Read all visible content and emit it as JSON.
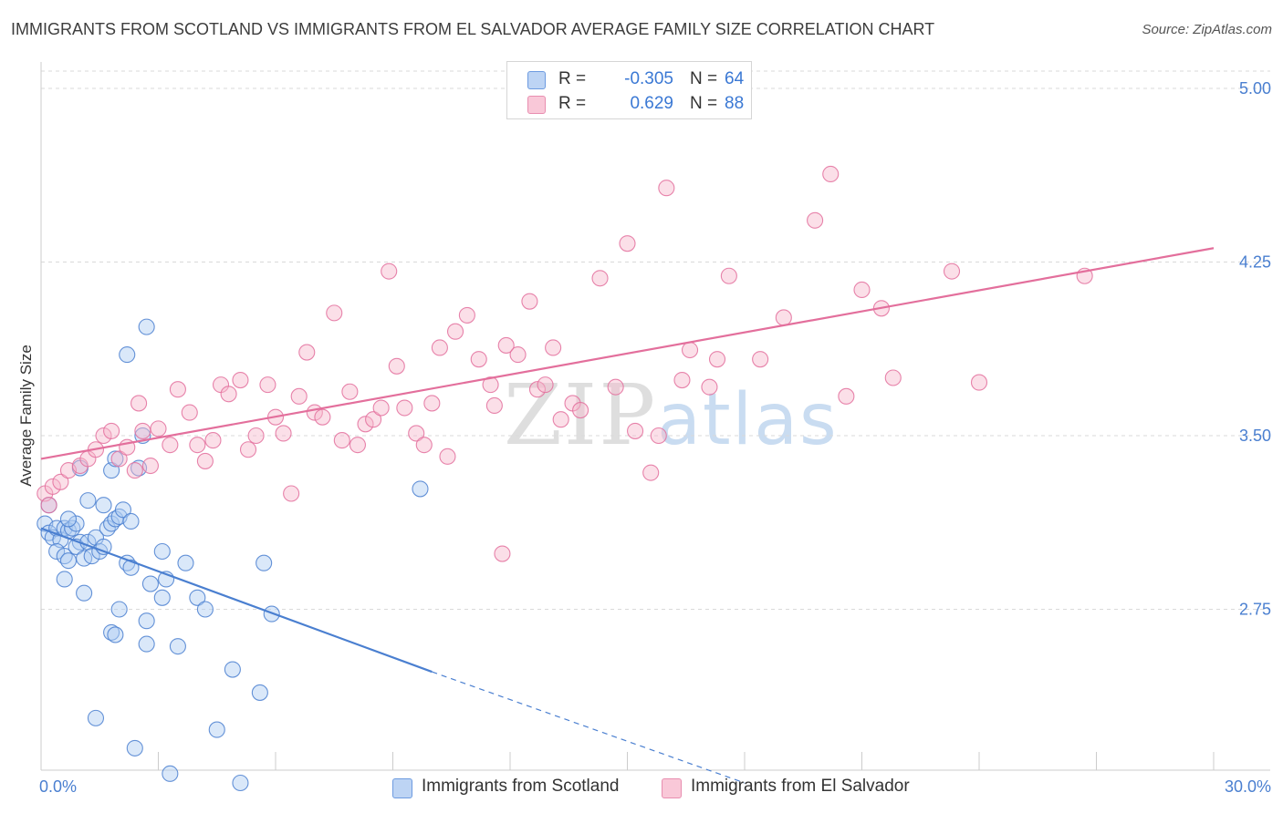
{
  "title": "IMMIGRANTS FROM SCOTLAND VS IMMIGRANTS FROM EL SALVADOR AVERAGE FAMILY SIZE CORRELATION CHART",
  "source": "Source: ZipAtlas.com",
  "watermark": {
    "zip": "ZIP",
    "atlas": "atlas"
  },
  "colors": {
    "blue": "#4a7fd0",
    "blue_fill": "#aecbf2",
    "pink": "#e36f9c",
    "pink_fill": "#f7b9cd",
    "grid": "#d9d9d9",
    "tick_text": "#4a7fd0"
  },
  "legend": [
    {
      "r_label": "R =",
      "r_value": "-0.305",
      "n_label": "N =",
      "n_value": "64"
    },
    {
      "r_label": "R =",
      "r_value": "0.629",
      "n_label": "N =",
      "n_value": "88"
    }
  ],
  "chart_data": {
    "type": "scatter",
    "title": "IMMIGRANTS FROM SCOTLAND VS IMMIGRANTS FROM EL SALVADOR AVERAGE FAMILY SIZE CORRELATION CHART",
    "xlabel": "",
    "ylabel": "Average Family Size",
    "xlim": [
      0,
      30
    ],
    "ylim": [
      2.0,
      5.15
    ],
    "x_tick_labels": [
      "0.0%",
      "30.0%"
    ],
    "y_ticks": [
      2.75,
      3.5,
      4.25,
      5.0
    ],
    "y_tick_labels": [
      "2.75",
      "3.50",
      "4.25",
      "5.00"
    ],
    "grid": true,
    "legend_position": "top-center",
    "series": [
      {
        "name": "Immigrants from Scotland",
        "color": "#4a7fd0",
        "trend": {
          "x": [
            0.0,
            10.0
          ],
          "y": [
            3.1,
            2.48
          ],
          "dashed_extension_to": [
            18.0,
            2.0
          ]
        },
        "points": [
          [
            0.1,
            3.12
          ],
          [
            0.2,
            3.08
          ],
          [
            0.3,
            3.06
          ],
          [
            0.4,
            3.1
          ],
          [
            0.5,
            3.05
          ],
          [
            0.6,
            3.1
          ],
          [
            0.7,
            3.09
          ],
          [
            0.8,
            3.1
          ],
          [
            0.9,
            3.12
          ],
          [
            1.0,
            3.04
          ],
          [
            0.4,
            3.0
          ],
          [
            0.6,
            2.98
          ],
          [
            0.7,
            2.96
          ],
          [
            0.9,
            3.02
          ],
          [
            1.1,
            2.97
          ],
          [
            1.2,
            3.04
          ],
          [
            1.3,
            2.98
          ],
          [
            1.4,
            3.06
          ],
          [
            1.5,
            3.0
          ],
          [
            1.6,
            3.02
          ],
          [
            1.7,
            3.1
          ],
          [
            1.8,
            3.12
          ],
          [
            1.9,
            3.14
          ],
          [
            2.0,
            3.15
          ],
          [
            2.1,
            3.18
          ],
          [
            2.3,
            3.13
          ],
          [
            1.2,
            3.22
          ],
          [
            1.6,
            3.2
          ],
          [
            0.7,
            3.14
          ],
          [
            2.2,
            2.95
          ],
          [
            2.3,
            2.93
          ],
          [
            1.8,
            3.35
          ],
          [
            2.5,
            3.36
          ],
          [
            1.9,
            3.4
          ],
          [
            1.0,
            3.36
          ],
          [
            2.6,
            3.5
          ],
          [
            2.7,
            3.97
          ],
          [
            2.2,
            3.85
          ],
          [
            3.1,
            3.0
          ],
          [
            3.7,
            2.95
          ],
          [
            2.8,
            2.86
          ],
          [
            3.2,
            2.88
          ],
          [
            3.1,
            2.8
          ],
          [
            4.0,
            2.8
          ],
          [
            4.2,
            2.75
          ],
          [
            1.1,
            2.82
          ],
          [
            0.6,
            2.88
          ],
          [
            2.0,
            2.75
          ],
          [
            2.7,
            2.7
          ],
          [
            1.8,
            2.65
          ],
          [
            1.9,
            2.64
          ],
          [
            2.7,
            2.6
          ],
          [
            3.5,
            2.59
          ],
          [
            4.9,
            2.49
          ],
          [
            5.6,
            2.39
          ],
          [
            1.4,
            2.28
          ],
          [
            2.4,
            2.15
          ],
          [
            4.5,
            2.23
          ],
          [
            3.3,
            2.04
          ],
          [
            5.1,
            2.0
          ],
          [
            5.7,
            2.95
          ],
          [
            5.9,
            2.73
          ],
          [
            9.7,
            3.27
          ],
          [
            0.2,
            3.2
          ]
        ]
      },
      {
        "name": "Immigrants from El Salvador",
        "color": "#e36f9c",
        "trend": {
          "x": [
            0.0,
            30.0
          ],
          "y": [
            3.4,
            4.31
          ]
        },
        "points": [
          [
            0.1,
            3.25
          ],
          [
            0.2,
            3.2
          ],
          [
            0.3,
            3.28
          ],
          [
            0.5,
            3.3
          ],
          [
            0.7,
            3.35
          ],
          [
            1.0,
            3.37
          ],
          [
            1.2,
            3.4
          ],
          [
            1.4,
            3.44
          ],
          [
            1.6,
            3.5
          ],
          [
            1.8,
            3.52
          ],
          [
            2.0,
            3.4
          ],
          [
            2.2,
            3.45
          ],
          [
            2.4,
            3.35
          ],
          [
            2.6,
            3.52
          ],
          [
            2.5,
            3.64
          ],
          [
            2.8,
            3.37
          ],
          [
            3.0,
            3.53
          ],
          [
            3.3,
            3.46
          ],
          [
            3.5,
            3.7
          ],
          [
            3.8,
            3.6
          ],
          [
            4.0,
            3.46
          ],
          [
            4.2,
            3.39
          ],
          [
            4.4,
            3.48
          ],
          [
            4.6,
            3.72
          ],
          [
            4.8,
            3.68
          ],
          [
            5.1,
            3.74
          ],
          [
            5.3,
            3.44
          ],
          [
            5.5,
            3.5
          ],
          [
            5.8,
            3.72
          ],
          [
            6.0,
            3.58
          ],
          [
            6.2,
            3.51
          ],
          [
            6.4,
            3.25
          ],
          [
            6.6,
            3.67
          ],
          [
            6.8,
            3.86
          ],
          [
            7.0,
            3.6
          ],
          [
            7.2,
            3.58
          ],
          [
            7.5,
            4.03
          ],
          [
            7.7,
            3.48
          ],
          [
            7.9,
            3.69
          ],
          [
            8.1,
            3.46
          ],
          [
            8.3,
            3.55
          ],
          [
            8.5,
            3.57
          ],
          [
            8.7,
            3.62
          ],
          [
            8.9,
            4.21
          ],
          [
            9.1,
            3.8
          ],
          [
            9.3,
            3.62
          ],
          [
            9.6,
            3.51
          ],
          [
            9.8,
            3.46
          ],
          [
            10.0,
            3.64
          ],
          [
            10.2,
            3.88
          ],
          [
            10.4,
            3.41
          ],
          [
            10.6,
            3.95
          ],
          [
            10.9,
            4.02
          ],
          [
            11.2,
            3.83
          ],
          [
            11.5,
            3.72
          ],
          [
            11.6,
            3.63
          ],
          [
            11.9,
            3.89
          ],
          [
            12.2,
            3.85
          ],
          [
            12.5,
            4.08
          ],
          [
            12.7,
            3.7
          ],
          [
            12.9,
            3.72
          ],
          [
            13.1,
            3.88
          ],
          [
            13.3,
            3.57
          ],
          [
            13.6,
            3.64
          ],
          [
            13.8,
            3.61
          ],
          [
            14.3,
            4.18
          ],
          [
            14.7,
            3.71
          ],
          [
            15.0,
            4.33
          ],
          [
            15.2,
            3.52
          ],
          [
            15.6,
            3.34
          ],
          [
            15.8,
            3.5
          ],
          [
            16.0,
            4.57
          ],
          [
            16.4,
            3.74
          ],
          [
            16.6,
            3.87
          ],
          [
            17.1,
            3.71
          ],
          [
            17.3,
            3.83
          ],
          [
            17.6,
            4.19
          ],
          [
            18.4,
            3.83
          ],
          [
            19.0,
            4.01
          ],
          [
            19.8,
            4.43
          ],
          [
            20.2,
            4.63
          ],
          [
            20.6,
            3.67
          ],
          [
            21.0,
            4.13
          ],
          [
            21.5,
            4.05
          ],
          [
            21.8,
            3.75
          ],
          [
            23.3,
            4.21
          ],
          [
            24.0,
            3.73
          ],
          [
            26.7,
            4.19
          ]
        ],
        "extra_points": [
          [
            11.8,
            2.99
          ]
        ]
      }
    ]
  }
}
